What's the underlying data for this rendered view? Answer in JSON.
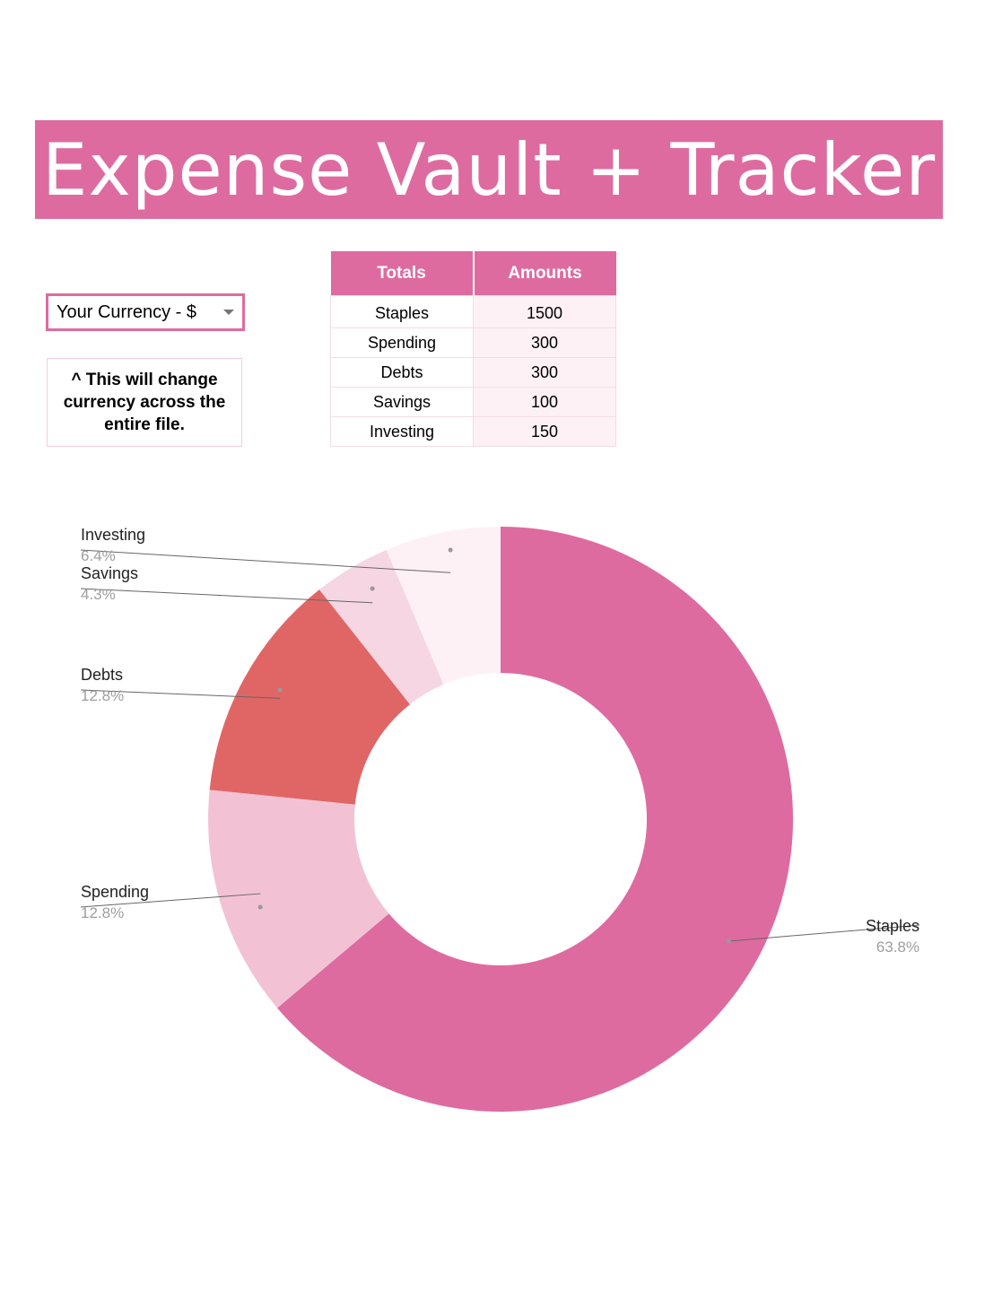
{
  "header": {
    "title": "Expense Vault + Tracker"
  },
  "currency": {
    "label": "Your Currency - ",
    "symbol": "$",
    "icon": "dropdown-caret-icon"
  },
  "note": {
    "text": "^ This will change currency across the entire file."
  },
  "table": {
    "headers": [
      "Totals",
      "Amounts"
    ],
    "rows": [
      {
        "label": "Staples",
        "amount": "1500"
      },
      {
        "label": "Spending",
        "amount": "300"
      },
      {
        "label": "Debts",
        "amount": "300"
      },
      {
        "label": "Savings",
        "amount": "100"
      },
      {
        "label": "Investing",
        "amount": "150"
      }
    ]
  },
  "colors": {
    "accent": "#de6ba0",
    "staples": "#de6ba0",
    "spending": "#f2c2d4",
    "debts": "#e06666",
    "savings": "#f6d6e3",
    "investing": "#fdf1f5"
  },
  "chart_data": {
    "type": "pie",
    "donut": true,
    "title": "",
    "slices": [
      {
        "name": "Staples",
        "value": 1500,
        "percent": "63.8%",
        "color": "#de6ba0"
      },
      {
        "name": "Spending",
        "value": 300,
        "percent": "12.8%",
        "color": "#f2c2d4"
      },
      {
        "name": "Debts",
        "value": 300,
        "percent": "12.8%",
        "color": "#e06666"
      },
      {
        "name": "Savings",
        "value": 100,
        "percent": "4.3%",
        "color": "#f6d6e3"
      },
      {
        "name": "Investing",
        "value": 150,
        "percent": "6.4%",
        "color": "#fdf1f5"
      }
    ],
    "legend": "none",
    "labels": "outside-with-leader-lines"
  }
}
